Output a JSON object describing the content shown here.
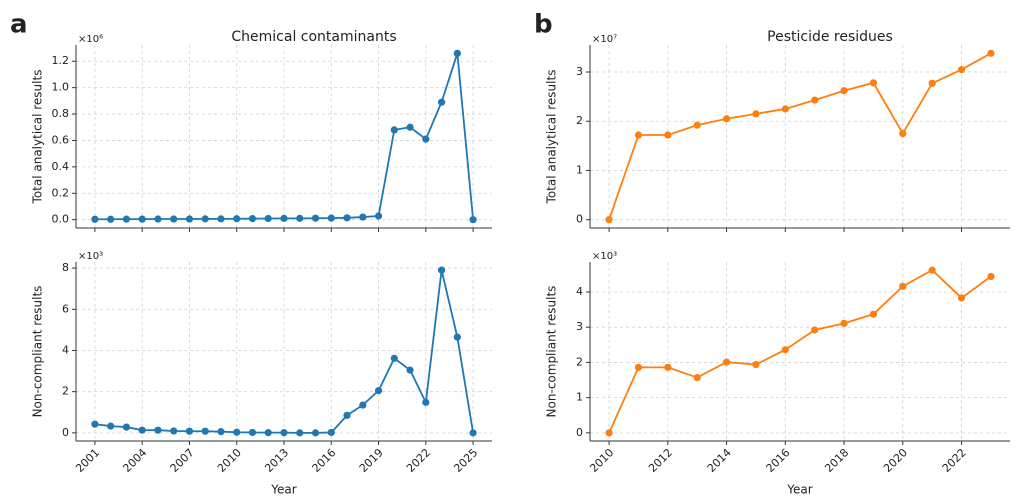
{
  "chart_data": [
    {
      "type": "line",
      "panel_label": "a",
      "title": "Chemical contaminants",
      "ylabel": "Total analytical results",
      "y_offset_label": "×10⁶",
      "color": "#1f77b4",
      "grid": true,
      "x": [
        2001,
        2002,
        2003,
        2004,
        2005,
        2006,
        2007,
        2008,
        2009,
        2010,
        2011,
        2012,
        2013,
        2014,
        2015,
        2016,
        2017,
        2018,
        2019,
        2020,
        2021,
        2022,
        2023,
        2024,
        2025
      ],
      "values": [
        0.003,
        0.003,
        0.004,
        0.004,
        0.005,
        0.005,
        0.005,
        0.006,
        0.006,
        0.007,
        0.008,
        0.009,
        0.01,
        0.01,
        0.011,
        0.012,
        0.014,
        0.02,
        0.028,
        0.68,
        0.7,
        0.61,
        0.89,
        1.26,
        0.0
      ],
      "xlim": [
        1999.8,
        2026.2
      ],
      "xticks": [
        2001,
        2004,
        2007,
        2010,
        2013,
        2016,
        2019,
        2022,
        2025
      ],
      "ylim": [
        -0.063,
        1.323
      ],
      "yticks": [
        {
          "value": 0,
          "label": "0.0"
        },
        0.2,
        0.4,
        0.6,
        0.8,
        {
          "value": 1,
          "label": "1.0"
        },
        1.2
      ]
    },
    {
      "type": "line",
      "panel_label": "b",
      "title": "Pesticide residues",
      "ylabel": "Total analytical results",
      "y_offset_label": "×10⁷",
      "color": "#ff7f0e",
      "grid": true,
      "x": [
        2010,
        2011,
        2012,
        2013,
        2014,
        2015,
        2016,
        2017,
        2018,
        2019,
        2020,
        2021,
        2022,
        2023
      ],
      "values": [
        0,
        1.72,
        1.72,
        1.92,
        2.05,
        2.15,
        2.25,
        2.43,
        2.62,
        2.78,
        1.75,
        2.77,
        3.05,
        3.38
      ],
      "xlim": [
        2009.35,
        2023.65
      ],
      "xticks": [
        2010,
        2012,
        2014,
        2016,
        2018,
        2020,
        2022
      ],
      "ylim": [
        -0.169,
        3.549
      ],
      "yticks": [
        0,
        1,
        2,
        3
      ]
    },
    {
      "type": "line",
      "ylabel": "Non-compliant results",
      "xlabel": "Year",
      "y_offset_label": "×10³",
      "color": "#1f77b4",
      "grid": true,
      "x": [
        2001,
        2002,
        2003,
        2004,
        2005,
        2006,
        2007,
        2008,
        2009,
        2010,
        2011,
        2012,
        2013,
        2014,
        2015,
        2016,
        2017,
        2018,
        2019,
        2020,
        2021,
        2022,
        2023,
        2024,
        2025
      ],
      "values": [
        0.42,
        0.33,
        0.28,
        0.13,
        0.13,
        0.09,
        0.08,
        0.08,
        0.06,
        0.03,
        0.02,
        0.01,
        0.01,
        0.0,
        0.0,
        0.02,
        0.85,
        1.35,
        2.05,
        3.62,
        3.05,
        1.48,
        7.9,
        4.65,
        0.0
      ],
      "xlim": [
        1999.8,
        2026.2
      ],
      "xticks": [
        2001,
        2004,
        2007,
        2010,
        2013,
        2016,
        2019,
        2022,
        2025
      ],
      "ylim": [
        -0.395,
        8.295
      ],
      "yticks": [
        0,
        2,
        4,
        6,
        8
      ]
    },
    {
      "type": "line",
      "ylabel": "Non-compliant results",
      "xlabel": "Year",
      "y_offset_label": "×10³",
      "color": "#ff7f0e",
      "grid": true,
      "x": [
        2010,
        2011,
        2012,
        2013,
        2014,
        2015,
        2016,
        2017,
        2018,
        2019,
        2020,
        2021,
        2022,
        2023
      ],
      "values": [
        0,
        1.86,
        1.86,
        1.57,
        2.01,
        1.94,
        2.36,
        2.92,
        3.11,
        3.37,
        4.16,
        4.62,
        3.83,
        4.44
      ],
      "xlim": [
        2009.35,
        2023.65
      ],
      "xticks": [
        2010,
        2012,
        2014,
        2016,
        2018,
        2020,
        2022
      ],
      "ylim": [
        -0.231,
        4.851
      ],
      "yticks": [
        0,
        1,
        2,
        3,
        4
      ]
    }
  ]
}
